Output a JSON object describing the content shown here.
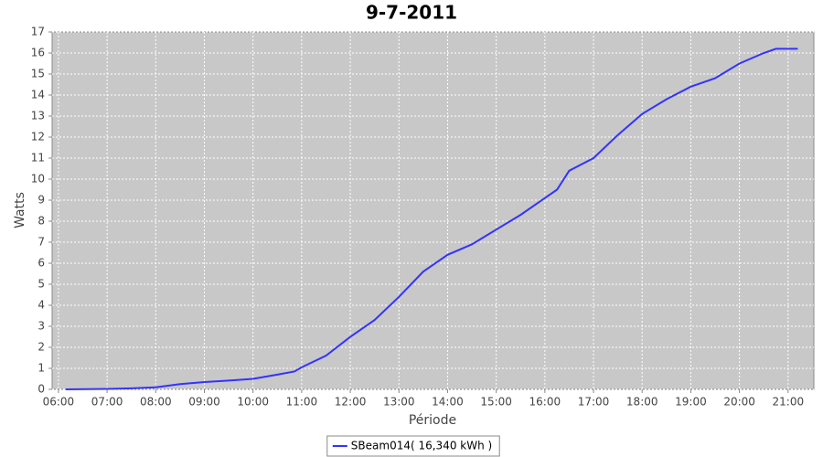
{
  "chart_data": {
    "type": "line",
    "title": "9-7-2011",
    "y_label": "Watts",
    "x_label": "Période",
    "x": [
      6.15,
      7.0,
      7.5,
      8.0,
      8.5,
      9.0,
      9.5,
      10.0,
      10.5,
      10.85,
      11.0,
      11.5,
      12.0,
      12.5,
      13.0,
      13.5,
      14.0,
      14.5,
      15.0,
      15.5,
      16.0,
      16.25,
      16.5,
      17.0,
      17.5,
      18.0,
      18.5,
      19.0,
      19.5,
      20.0,
      20.5,
      20.75,
      21.2
    ],
    "series": [
      {
        "name": "SBeam014( 16,340 kWh )",
        "color": "#3333ff",
        "values": [
          0,
          0.02,
          0.05,
          0.1,
          0.25,
          0.35,
          0.42,
          0.5,
          0.7,
          0.85,
          1.05,
          1.6,
          2.5,
          3.3,
          4.4,
          5.6,
          6.4,
          6.9,
          7.6,
          8.3,
          9.1,
          9.5,
          10.4,
          11.0,
          12.1,
          13.1,
          13.8,
          14.4,
          14.8,
          15.5,
          16.0,
          16.2,
          16.2
        ]
      }
    ],
    "xlim": [
      5.87,
      21.53
    ],
    "xticks": [
      {
        "value": 6,
        "label": "06:00"
      },
      {
        "value": 7,
        "label": "07:00"
      },
      {
        "value": 8,
        "label": "08:00"
      },
      {
        "value": 9,
        "label": "09:00"
      },
      {
        "value": 10,
        "label": "10:00"
      },
      {
        "value": 11,
        "label": "11:00"
      },
      {
        "value": 12,
        "label": "12:00"
      },
      {
        "value": 13,
        "label": "13:00"
      },
      {
        "value": 14,
        "label": "14:00"
      },
      {
        "value": 15,
        "label": "15:00"
      },
      {
        "value": 16,
        "label": "16:00"
      },
      {
        "value": 17,
        "label": "17:00"
      },
      {
        "value": 18,
        "label": "18:00"
      },
      {
        "value": 19,
        "label": "19:00"
      },
      {
        "value": 20,
        "label": "20:00"
      },
      {
        "value": 21,
        "label": "21:00"
      }
    ],
    "ylim": [
      0,
      17
    ],
    "yticks": [
      0,
      1,
      2,
      3,
      4,
      5,
      6,
      7,
      8,
      9,
      10,
      11,
      12,
      13,
      14,
      15,
      16,
      17
    ],
    "grid": true,
    "plot_background": "#c8c8c8"
  }
}
